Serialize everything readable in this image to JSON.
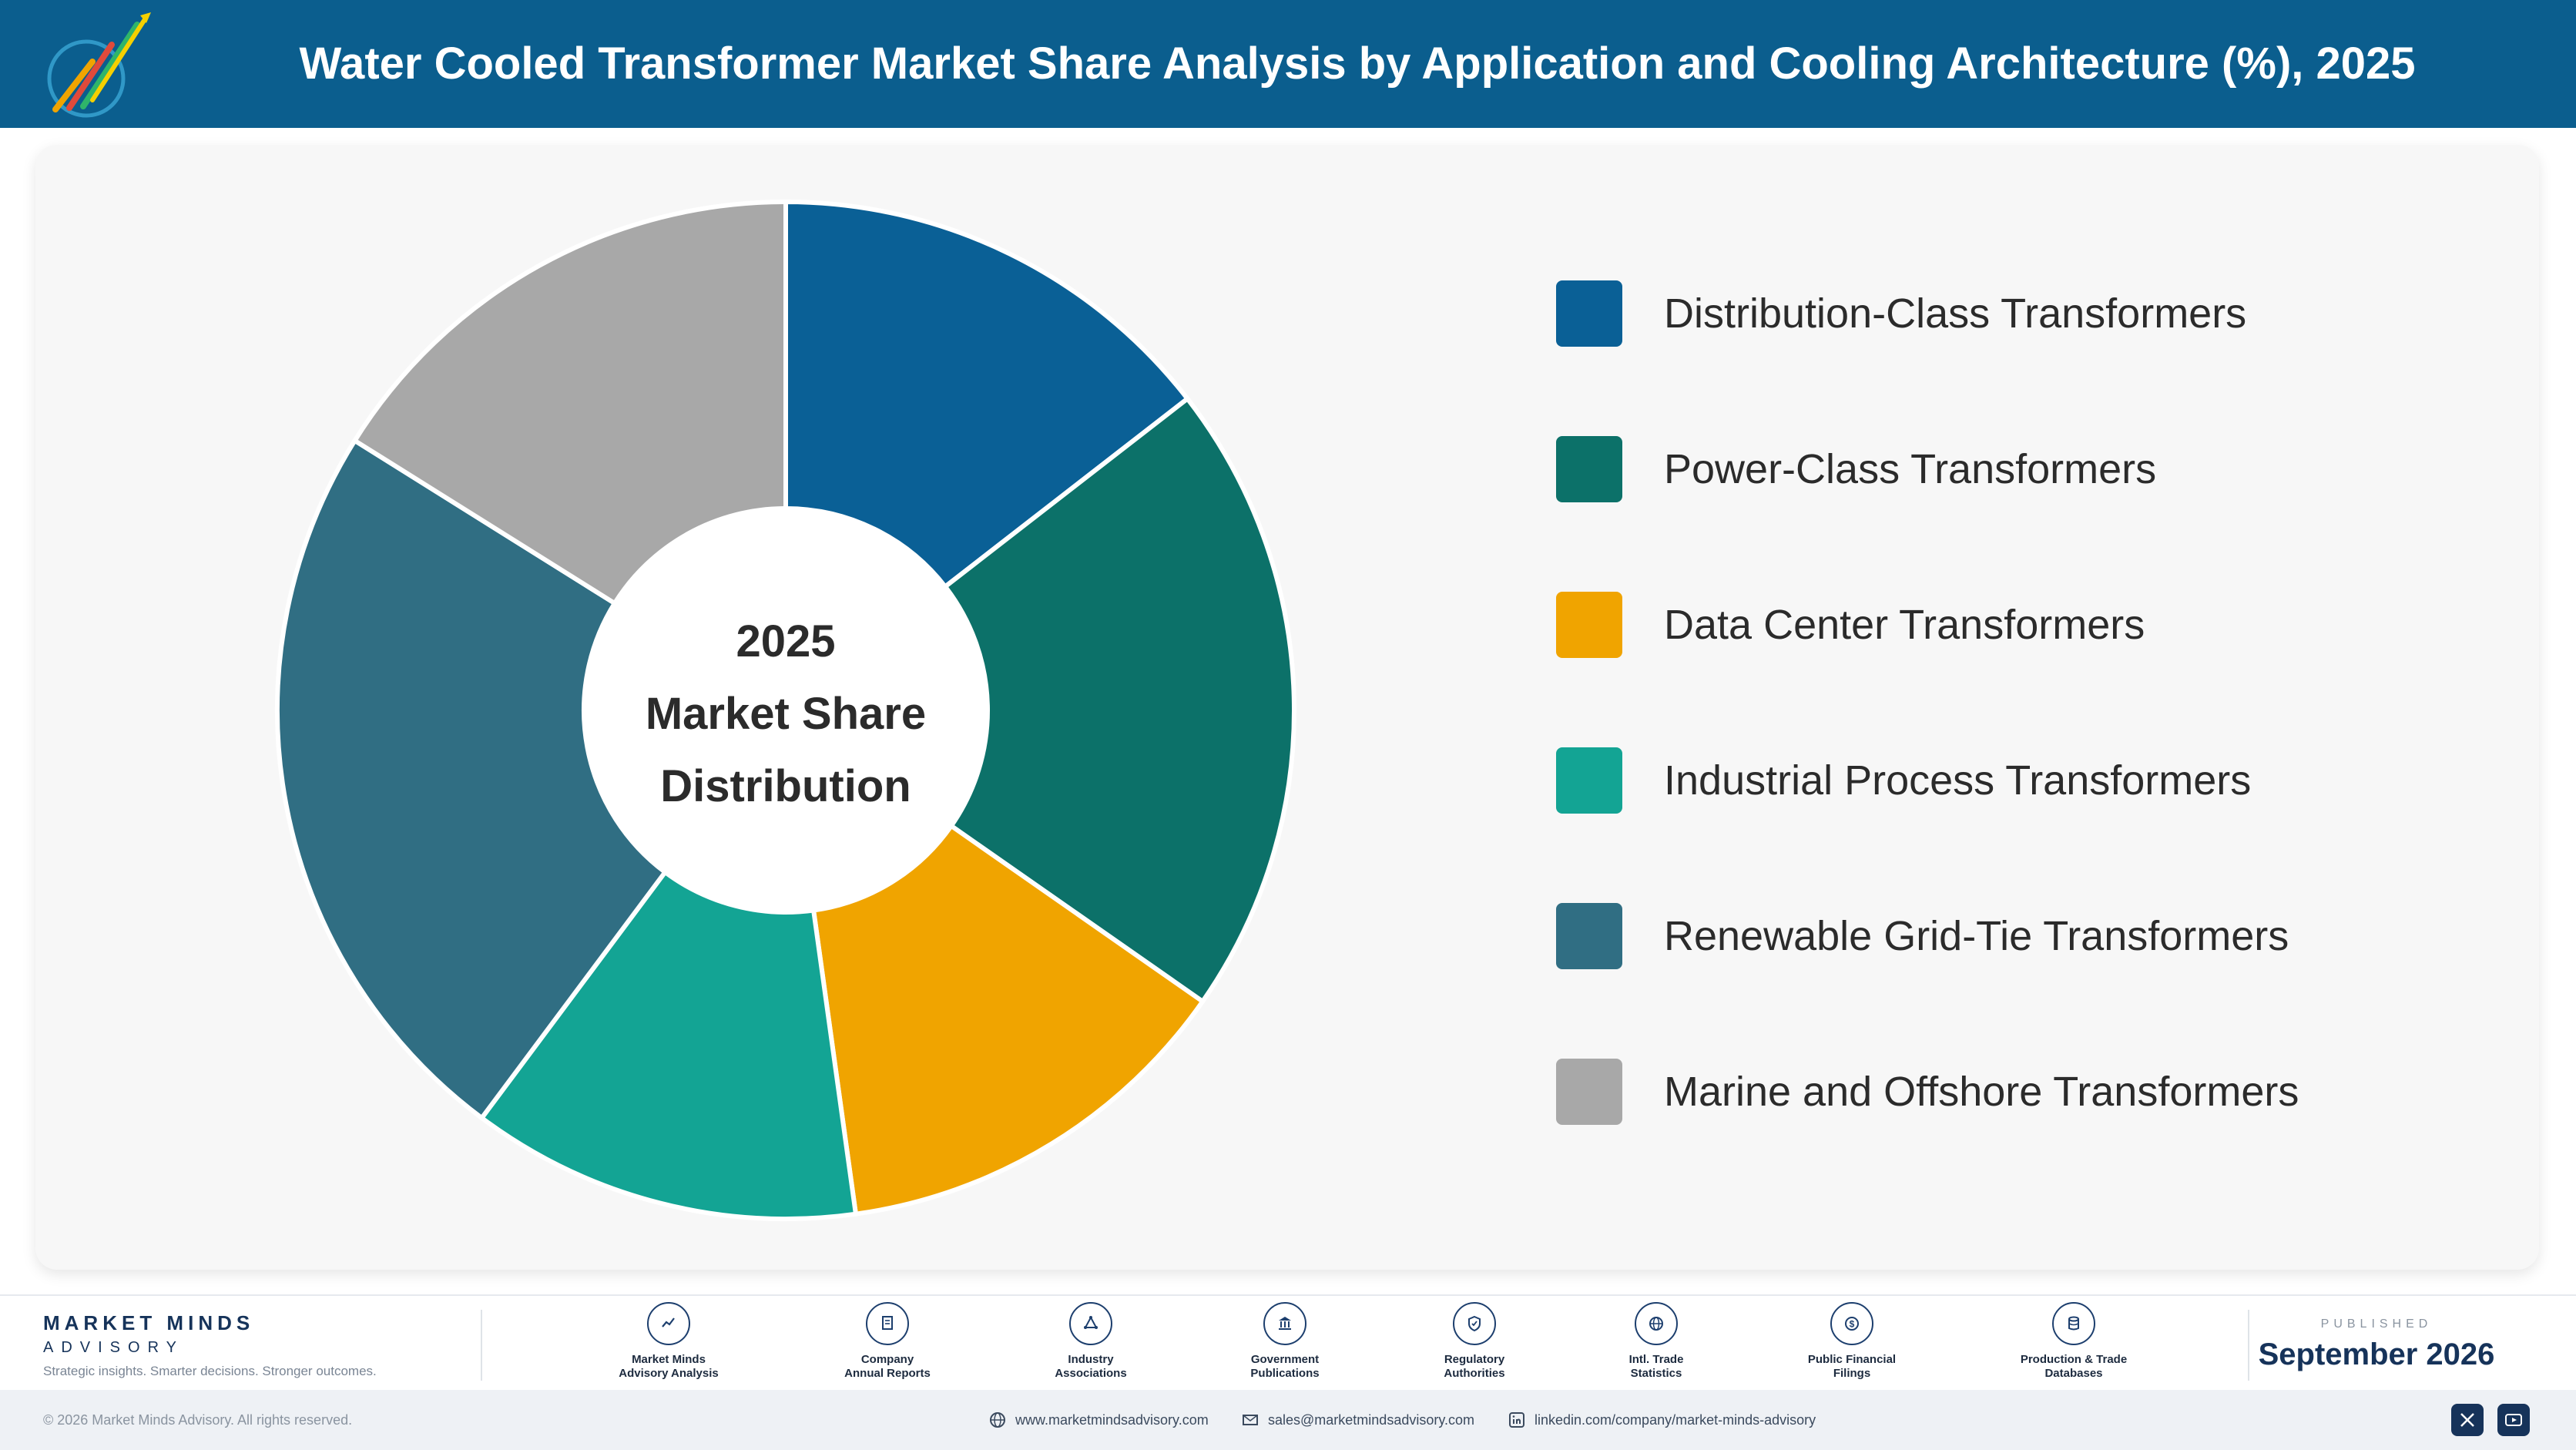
{
  "header": {
    "title": "Water Cooled Transformer Market Share Analysis by Application and Cooling Architecture (%), 2025",
    "logo_text": "Market Minds Advisory"
  },
  "chart_data": {
    "type": "pie",
    "title": "Water Cooled Transformer Market Share Analysis by Application and Cooling Architecture (%), 2025",
    "center_label": [
      "2025",
      "Market Share",
      "Distribution"
    ],
    "categories": [
      "Distribution-Class Transformers",
      "Power-Class Transformers",
      "Data Center Transformers",
      "Industrial Process Transformers",
      "Renewable Grid-Tie Transformers",
      "Marine and Offshore Transformers"
    ],
    "values": [
      14.5,
      20.2,
      13.1,
      12.4,
      23.7,
      16.1
    ],
    "colors": [
      "#0a6096",
      "#0c7169",
      "#f0a400",
      "#13a494",
      "#306e83",
      "#a8a8a8"
    ],
    "legend_position": "right",
    "donut": true
  },
  "footer": {
    "brand": "MARKET MINDS",
    "brand_sub": "ADVISORY",
    "tagline": "Strategic insights. Smarter decisions. Stronger outcomes.",
    "sources": [
      {
        "label_lines": [
          "Market Minds",
          "Advisory Analysis"
        ],
        "icon": "trend-icon"
      },
      {
        "label_lines": [
          "Company",
          "Annual Reports"
        ],
        "icon": "document-icon"
      },
      {
        "label_lines": [
          "Industry",
          "Associations"
        ],
        "icon": "network-icon"
      },
      {
        "label_lines": [
          "Government",
          "Publications"
        ],
        "icon": "government-icon"
      },
      {
        "label_lines": [
          "Regulatory",
          "Authorities"
        ],
        "icon": "shield-icon"
      },
      {
        "label_lines": [
          "Intl. Trade",
          "Statistics"
        ],
        "icon": "globe-icon"
      },
      {
        "label_lines": [
          "Public Financial",
          "Filings"
        ],
        "icon": "dollar-icon"
      },
      {
        "label_lines": [
          "Production & Trade",
          "Databases"
        ],
        "icon": "database-icon"
      }
    ],
    "published_label": "PUBLISHED",
    "published_date": "September 2026"
  },
  "bottom_bar": {
    "copyright": "© 2026 Market Minds Advisory. All rights reserved.",
    "website": "www.marketmindsadvisory.com",
    "email": "sales@marketmindsadvisory.com",
    "linkedin": "linkedin.com/company/market-minds-advisory"
  }
}
